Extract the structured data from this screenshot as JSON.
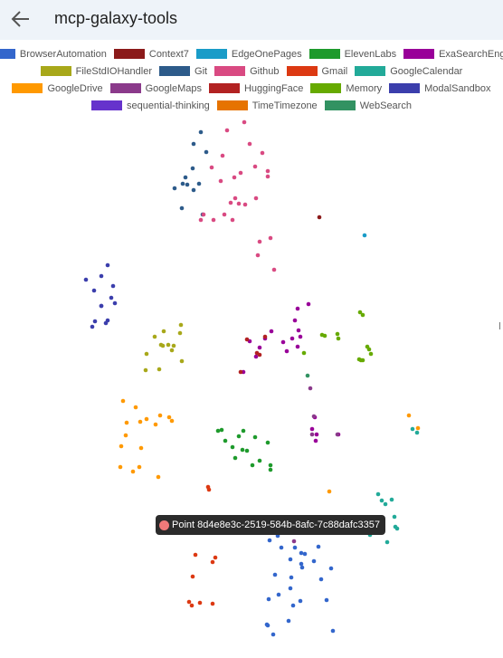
{
  "header": {
    "title": "mcp-galaxy-tools"
  },
  "chart_data": {
    "type": "scatter",
    "series": [
      {
        "name": "BrowserAutomation",
        "color": "#3366cc",
        "x": [
          298,
          311,
          321,
          337,
          304,
          334,
          297,
          322,
          333,
          295,
          352,
          366,
          308,
          296,
          321,
          347,
          333,
          332,
          361,
          368,
          319,
          324,
          302,
          326,
          307,
          355
        ],
        "y": [
          597,
          605,
          618,
          612,
          635,
          627,
          662,
          638,
          611,
          690,
          604,
          628,
          657,
          691,
          650,
          620,
          623,
          664,
          663,
          697,
          686,
          669,
          701,
          605,
          592,
          640
        ]
      },
      {
        "name": "Context7",
        "color": "#8b1a1a",
        "x": [
          353
        ],
        "y": [
          240
        ]
      },
      {
        "name": "EdgeOnePages",
        "color": "#1a9cc8",
        "x": [
          403
        ],
        "y": [
          260
        ]
      },
      {
        "name": "ElevenLabs",
        "color": "#1e9a2c",
        "x": [
          241,
          249,
          269,
          282,
          287,
          296,
          268,
          245,
          260,
          299,
          264,
          273,
          299,
          279,
          257
        ],
        "y": [
          476,
          487,
          476,
          483,
          509,
          489,
          497,
          475,
          506,
          514,
          482,
          498,
          519,
          514,
          494
        ]
      },
      {
        "name": "ExaSearchEngine",
        "color": "#990099",
        "x": [
          329,
          341,
          326,
          330,
          332,
          313,
          323,
          300,
          287,
          283,
          269,
          276,
          293,
          317,
          329,
          348,
          350,
          349,
          374,
          345
        ],
        "y": [
          341,
          336,
          354,
          365,
          372,
          378,
          374,
          366,
          384,
          394,
          411,
          377,
          374,
          388,
          383,
          461,
          480,
          487,
          480,
          474
        ]
      },
      {
        "name": "FileStdIOHandler",
        "color": "#a8a81a",
        "x": [
          200,
          178,
          186,
          190,
          171,
          199,
          162,
          180,
          192,
          161,
          176,
          201,
          181
        ],
        "y": [
          359,
          381,
          381,
          387,
          372,
          368,
          391,
          382,
          382,
          409,
          408,
          399,
          366
        ]
      },
      {
        "name": "Git",
        "color": "#2d5b8a",
        "x": [
          222,
          214,
          228,
          205,
          213,
          220,
          207,
          193,
          202,
          224,
          214,
          201
        ],
        "y": [
          146,
          159,
          168,
          196,
          186,
          203,
          204,
          208,
          203,
          237,
          210,
          230
        ]
      },
      {
        "name": "Github",
        "color": "#d94a82",
        "x": [
          251,
          270,
          290,
          276,
          246,
          282,
          266,
          259,
          296,
          234,
          296,
          260,
          255,
          248,
          283,
          271,
          244,
          225,
          236,
          257,
          264,
          222,
          287,
          299,
          285,
          303
        ],
        "y": [
          144,
          135,
          169,
          159,
          172,
          184,
          191,
          196,
          189,
          185,
          195,
          219,
          224,
          237,
          219,
          226,
          200,
          237,
          243,
          243,
          225,
          243,
          267,
          263,
          282,
          298
        ]
      },
      {
        "name": "Gmail",
        "color": "#dc3912",
        "x": [
          230,
          231,
          238,
          235,
          213,
          209,
          212,
          221,
          235,
          216
        ],
        "y": [
          538,
          541,
          616,
          621,
          637,
          665,
          669,
          666,
          667,
          613
        ]
      },
      {
        "name": "GoogleCalendar",
        "color": "#22aa99",
        "x": [
          418,
          426,
          433,
          422,
          436,
          437,
          428,
          420,
          439,
          411,
          456,
          461,
          409
        ],
        "y": [
          546,
          557,
          552,
          553,
          571,
          582,
          599,
          588,
          584,
          588,
          474,
          478,
          591
        ]
      },
      {
        "name": "GoogleDrive",
        "color": "#ff9900",
        "x": [
          136,
          150,
          140,
          155,
          162,
          139,
          172,
          187,
          177,
          156,
          147,
          133,
          154,
          175,
          134,
          190,
          364,
          452,
          462
        ],
        "y": [
          443,
          450,
          467,
          466,
          463,
          481,
          469,
          461,
          459,
          495,
          521,
          516,
          516,
          527,
          493,
          465,
          543,
          459,
          473
        ]
      },
      {
        "name": "GoogleMaps",
        "color": "#8b3a8b",
        "x": [
          343,
          347,
          345,
          373,
          325
        ],
        "y": [
          429,
          460,
          480,
          480,
          598
        ]
      },
      {
        "name": "HuggingFace",
        "color": "#b22222",
        "x": [
          273,
          266,
          284,
          287,
          293
        ],
        "y": [
          375,
          411,
          390,
          392,
          372
        ]
      },
      {
        "name": "Memory",
        "color": "#66aa00",
        "x": [
          356,
          359,
          373,
          374,
          398,
          401,
          406,
          408,
          410,
          399,
          397,
          401,
          336
        ],
        "y": [
          370,
          371,
          369,
          374,
          345,
          348,
          383,
          386,
          391,
          398,
          397,
          398,
          390
        ]
      },
      {
        "name": "ModalSandbox",
        "color": "#3b3eac",
        "x": [
          119,
          95,
          112,
          125,
          123,
          127,
          104,
          112,
          112,
          105,
          102,
          119,
          117
        ],
        "y": [
          293,
          309,
          305,
          316,
          329,
          335,
          321,
          338,
          338,
          355,
          361,
          354,
          357
        ]
      },
      {
        "name": "sequential-thinking",
        "color": "#6633cc",
        "x": [],
        "y": []
      },
      {
        "name": "TimeTimezone",
        "color": "#e67300",
        "x": [],
        "y": []
      },
      {
        "name": "WebSearch",
        "color": "#329262",
        "x": [
          340
        ],
        "y": [
          415
        ]
      }
    ],
    "highlight": {
      "x": 418,
      "y": 579,
      "color": "#f07a7a"
    },
    "tooltip": "Point 8d4e8e3c-2519-584b-8afc-7c88dafc3357"
  }
}
